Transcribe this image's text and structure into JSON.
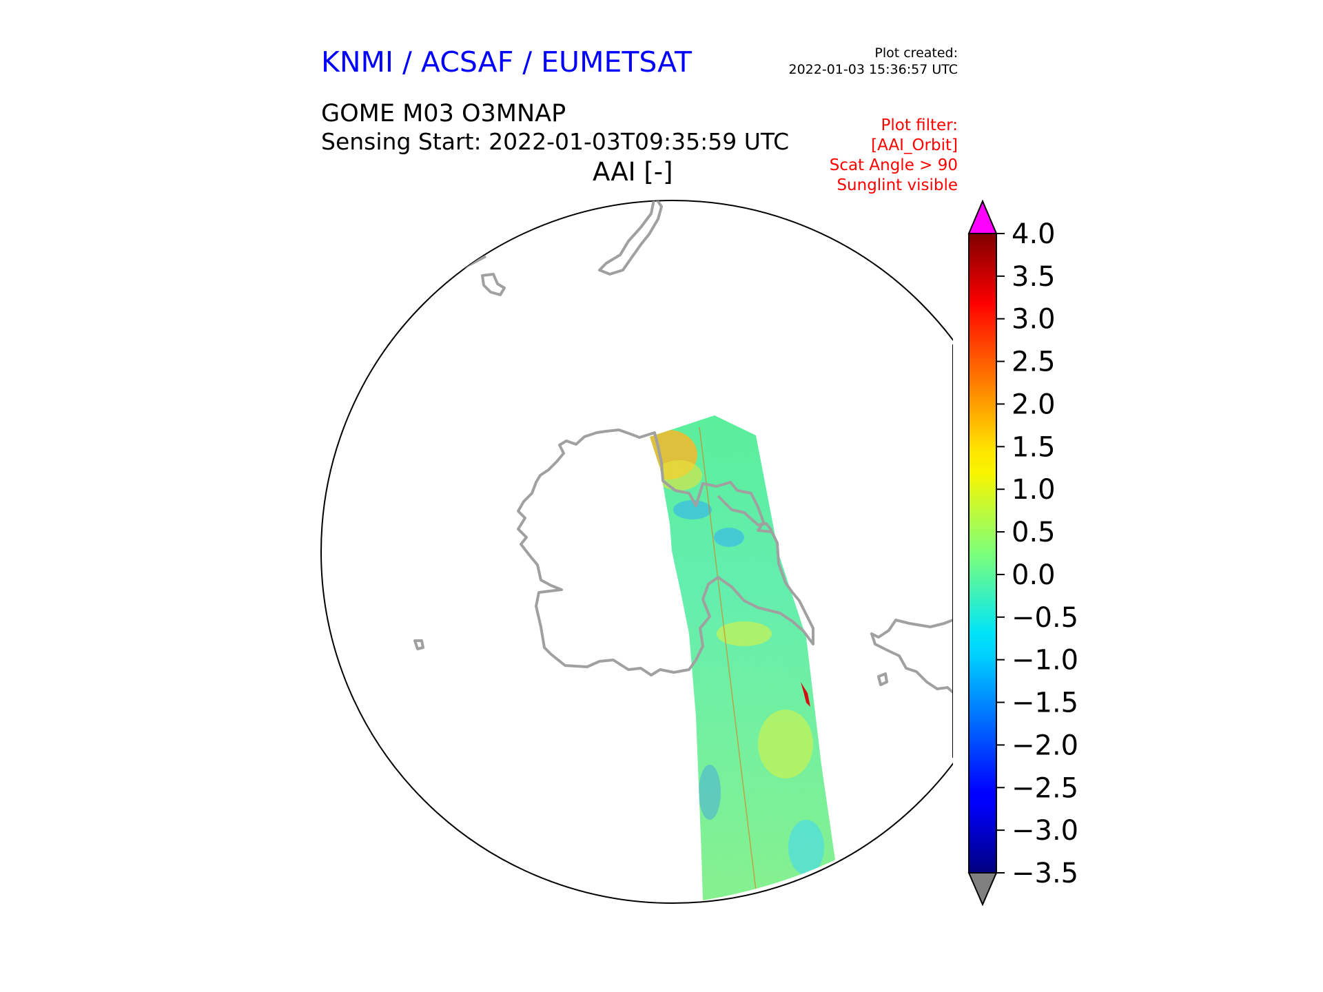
{
  "header": {
    "organization": "KNMI / ACSAF / EUMETSAT",
    "created_label": "Plot created:",
    "created_time": "2022-01-03 15:36:57 UTC",
    "product": "GOME M03 O3MNAP",
    "sensing_start": "Sensing Start: 2022-01-03T09:35:59 UTC",
    "variable": "AAI [-]"
  },
  "filters": [
    "Plot filter:",
    "[AAI_Orbit]",
    "Scat Angle > 90",
    "Sunglint visible"
  ],
  "colors": {
    "org_title": "#0000ff",
    "filter_text": "#ff0000",
    "coastline": "#a0a0a0",
    "over_range": "#ff00ff",
    "under_range": "#808080"
  },
  "map": {
    "projection": "polar stereographic (south pole)",
    "colormap": "jet"
  },
  "chart_data": {
    "type": "heatmap",
    "colorbar": {
      "vmin": -3.5,
      "vmax": 4.0,
      "ticks": [
        4.0,
        3.5,
        3.0,
        2.5,
        2.0,
        1.5,
        1.0,
        0.5,
        0.0,
        -0.5,
        -1.0,
        -1.5,
        -2.0,
        -2.5,
        -3.0,
        -3.5
      ],
      "tick_labels": [
        "4.0",
        "3.5",
        "3.0",
        "2.5",
        "2.0",
        "1.5",
        "1.0",
        "0.5",
        "0.0",
        "−0.5",
        "−1.0",
        "−1.5",
        "−2.0",
        "−2.5",
        "−3.0",
        "−3.5"
      ],
      "extend": "both"
    }
  }
}
